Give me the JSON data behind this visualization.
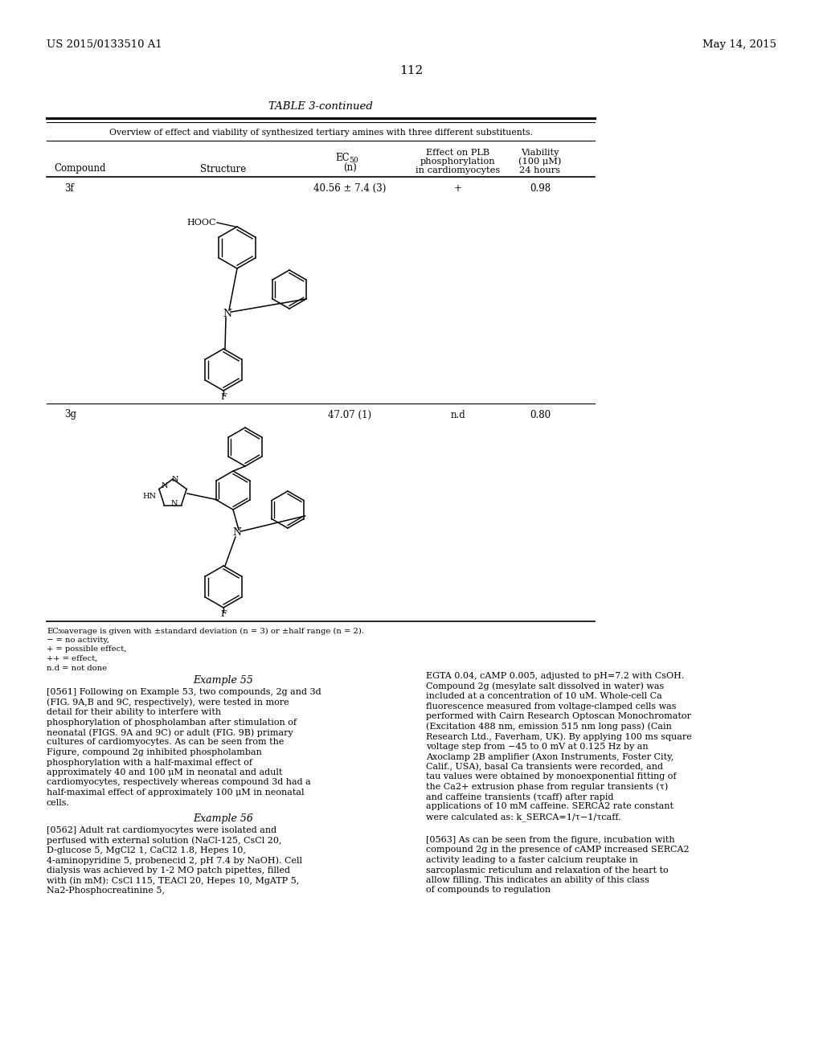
{
  "page_number": "112",
  "patent_left": "US 2015/0133510 A1",
  "patent_right": "May 14, 2015",
  "table_title": "TABLE 3-continued",
  "table_subtitle": "Overview of effect and viability of synthesized tertiary amines with three different substituents.",
  "row1_compound": "3f",
  "row1_ec50": "40.56 ± 7.4 (3)",
  "row1_effect": "+",
  "row1_viability": "0.98",
  "row2_compound": "3g",
  "row2_ec50": "47.07 (1)",
  "row2_effect": "n.d",
  "row2_viability": "0.80",
  "footnotes": [
    "EC50 average is given with ±standard deviation (n = 3) or ±half range (n = 2).",
    "− = no activity,",
    "+ = possible effect,",
    "++ = effect,",
    "n.d = not done"
  ],
  "example_55_title": "Example 55",
  "example_55_para": "[0561]  Following on Example 53, two compounds, 2g and 3d (FIG. 9A,B and 9C, respectively), were tested in more detail for their ability to interfere with phosphorylation of phospholamban after stimulation of neonatal (FIGS. 9A and 9C) or adult (FIG. 9B) primary cultures of cardiomyocytes. As can be seen from the Figure, compound 2g inhibited phospholamban phosphorylation with a half-maximal effect of approximately 40 and 100 μM in neonatal and adult cardiomyocytes, respectively whereas compound 3d had a half-maximal effect of approximately 100 μM in neonatal cells.",
  "example_56_title": "Example 56",
  "example_56_para": "[0562]  Adult rat cardiomyocytes were isolated and perfused with external solution (NaCl-125, CsCl 20, D-glucose 5, MgCl2 1, CaCl2 1.8, Hepes 10, 4-aminopyridine 5, probenecid 2, pH 7.4 by NaOH). Cell dialysis was achieved by 1-2 MO patch pipettes, filled with (in mM): CsCl 115, TEACl 20, Hepes 10, MgATP 5, Na2-Phosphocreatinine 5,",
  "right_col_para1": "EGTA 0.04, cAMP 0.005, adjusted to pH=7.2 with CsOH. Compound 2g (mesylate salt dissolved in water) was included at a concentration of 10 uM. Whole-cell Ca fluorescence measured from voltage-clamped cells was performed with Cairn Research Optoscan Monochromator (Excitation 488 nm, emission 515 nm long pass) (Cain Research Ltd., Faverham, UK). By applying 100 ms square voltage step from −45 to 0 mV at 0.125 Hz by an Axoclamp 2B amplifier (Axon Instruments, Foster City, Calif., USA), basal Ca transients were recorded, and tau values were obtained by monoexponential fitting of the Ca2+ extrusion phase from regular transients (τ) and caffeine transients (τcaff) after rapid applications of 10 mM caffeine. SERCA2 rate constant were calculated as: k_SERCA=1/τ−1/τcaff.",
  "right_col_para2": "[0563]  As can be seen from the figure, incubation with compound 2g in the presence of cAMP increased SERCA2 activity leading to a faster calcium reuptake in sarcoplasmic reticulum and relaxation of the heart to allow filling. This indicates an ability of this class of compounds to regulation"
}
